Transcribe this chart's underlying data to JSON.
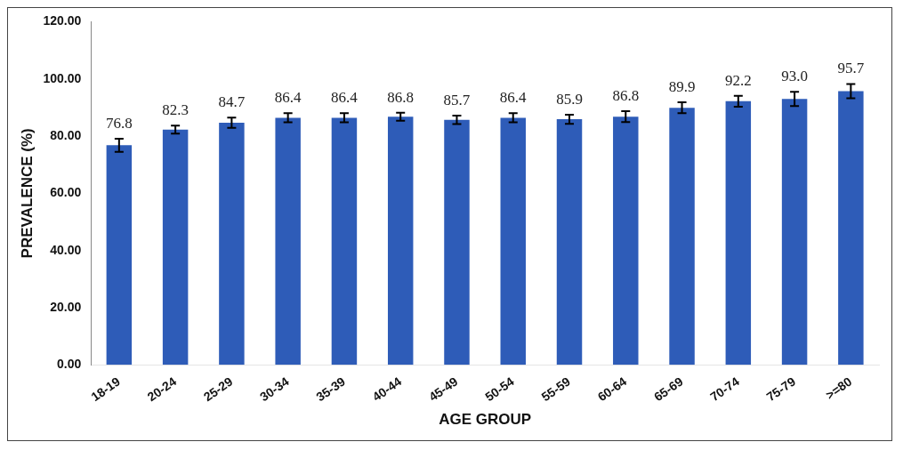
{
  "chart_data": {
    "type": "bar",
    "xlabel": "AGE GROUP",
    "ylabel": "PREVALENCE (%)",
    "categories": [
      "18-19",
      "20-24",
      "25-29",
      "30-34",
      "35-39",
      "40-44",
      "45-49",
      "50-54",
      "55-59",
      "60-64",
      "65-69",
      "70-74",
      "75-79",
      ">=80"
    ],
    "values": [
      76.8,
      82.3,
      84.7,
      86.4,
      86.4,
      86.8,
      85.7,
      86.4,
      85.9,
      86.8,
      89.9,
      92.2,
      93.0,
      95.7
    ],
    "errors": [
      2.3,
      1.4,
      1.8,
      1.6,
      1.6,
      1.4,
      1.5,
      1.6,
      1.6,
      1.9,
      1.9,
      1.9,
      2.5,
      2.5
    ],
    "value_labels": [
      "76.8",
      "82.3",
      "84.7",
      "86.4",
      "86.4",
      "86.8",
      "85.7",
      "86.4",
      "85.9",
      "86.8",
      "89.9",
      "92.2",
      "93.0",
      "95.7"
    ],
    "color": "#2e5cb8",
    "grid": false,
    "legend": false,
    "ylim": [
      0,
      120
    ],
    "yticks": [
      {
        "value": 0,
        "label": "0.00"
      },
      {
        "value": 20,
        "label": "20.00"
      },
      {
        "value": 40,
        "label": "40.00"
      },
      {
        "value": 60,
        "label": "60.00"
      },
      {
        "value": 80,
        "label": "80.00"
      },
      {
        "value": 100,
        "label": "100.00"
      },
      {
        "value": 120,
        "label": "120.00"
      }
    ]
  }
}
